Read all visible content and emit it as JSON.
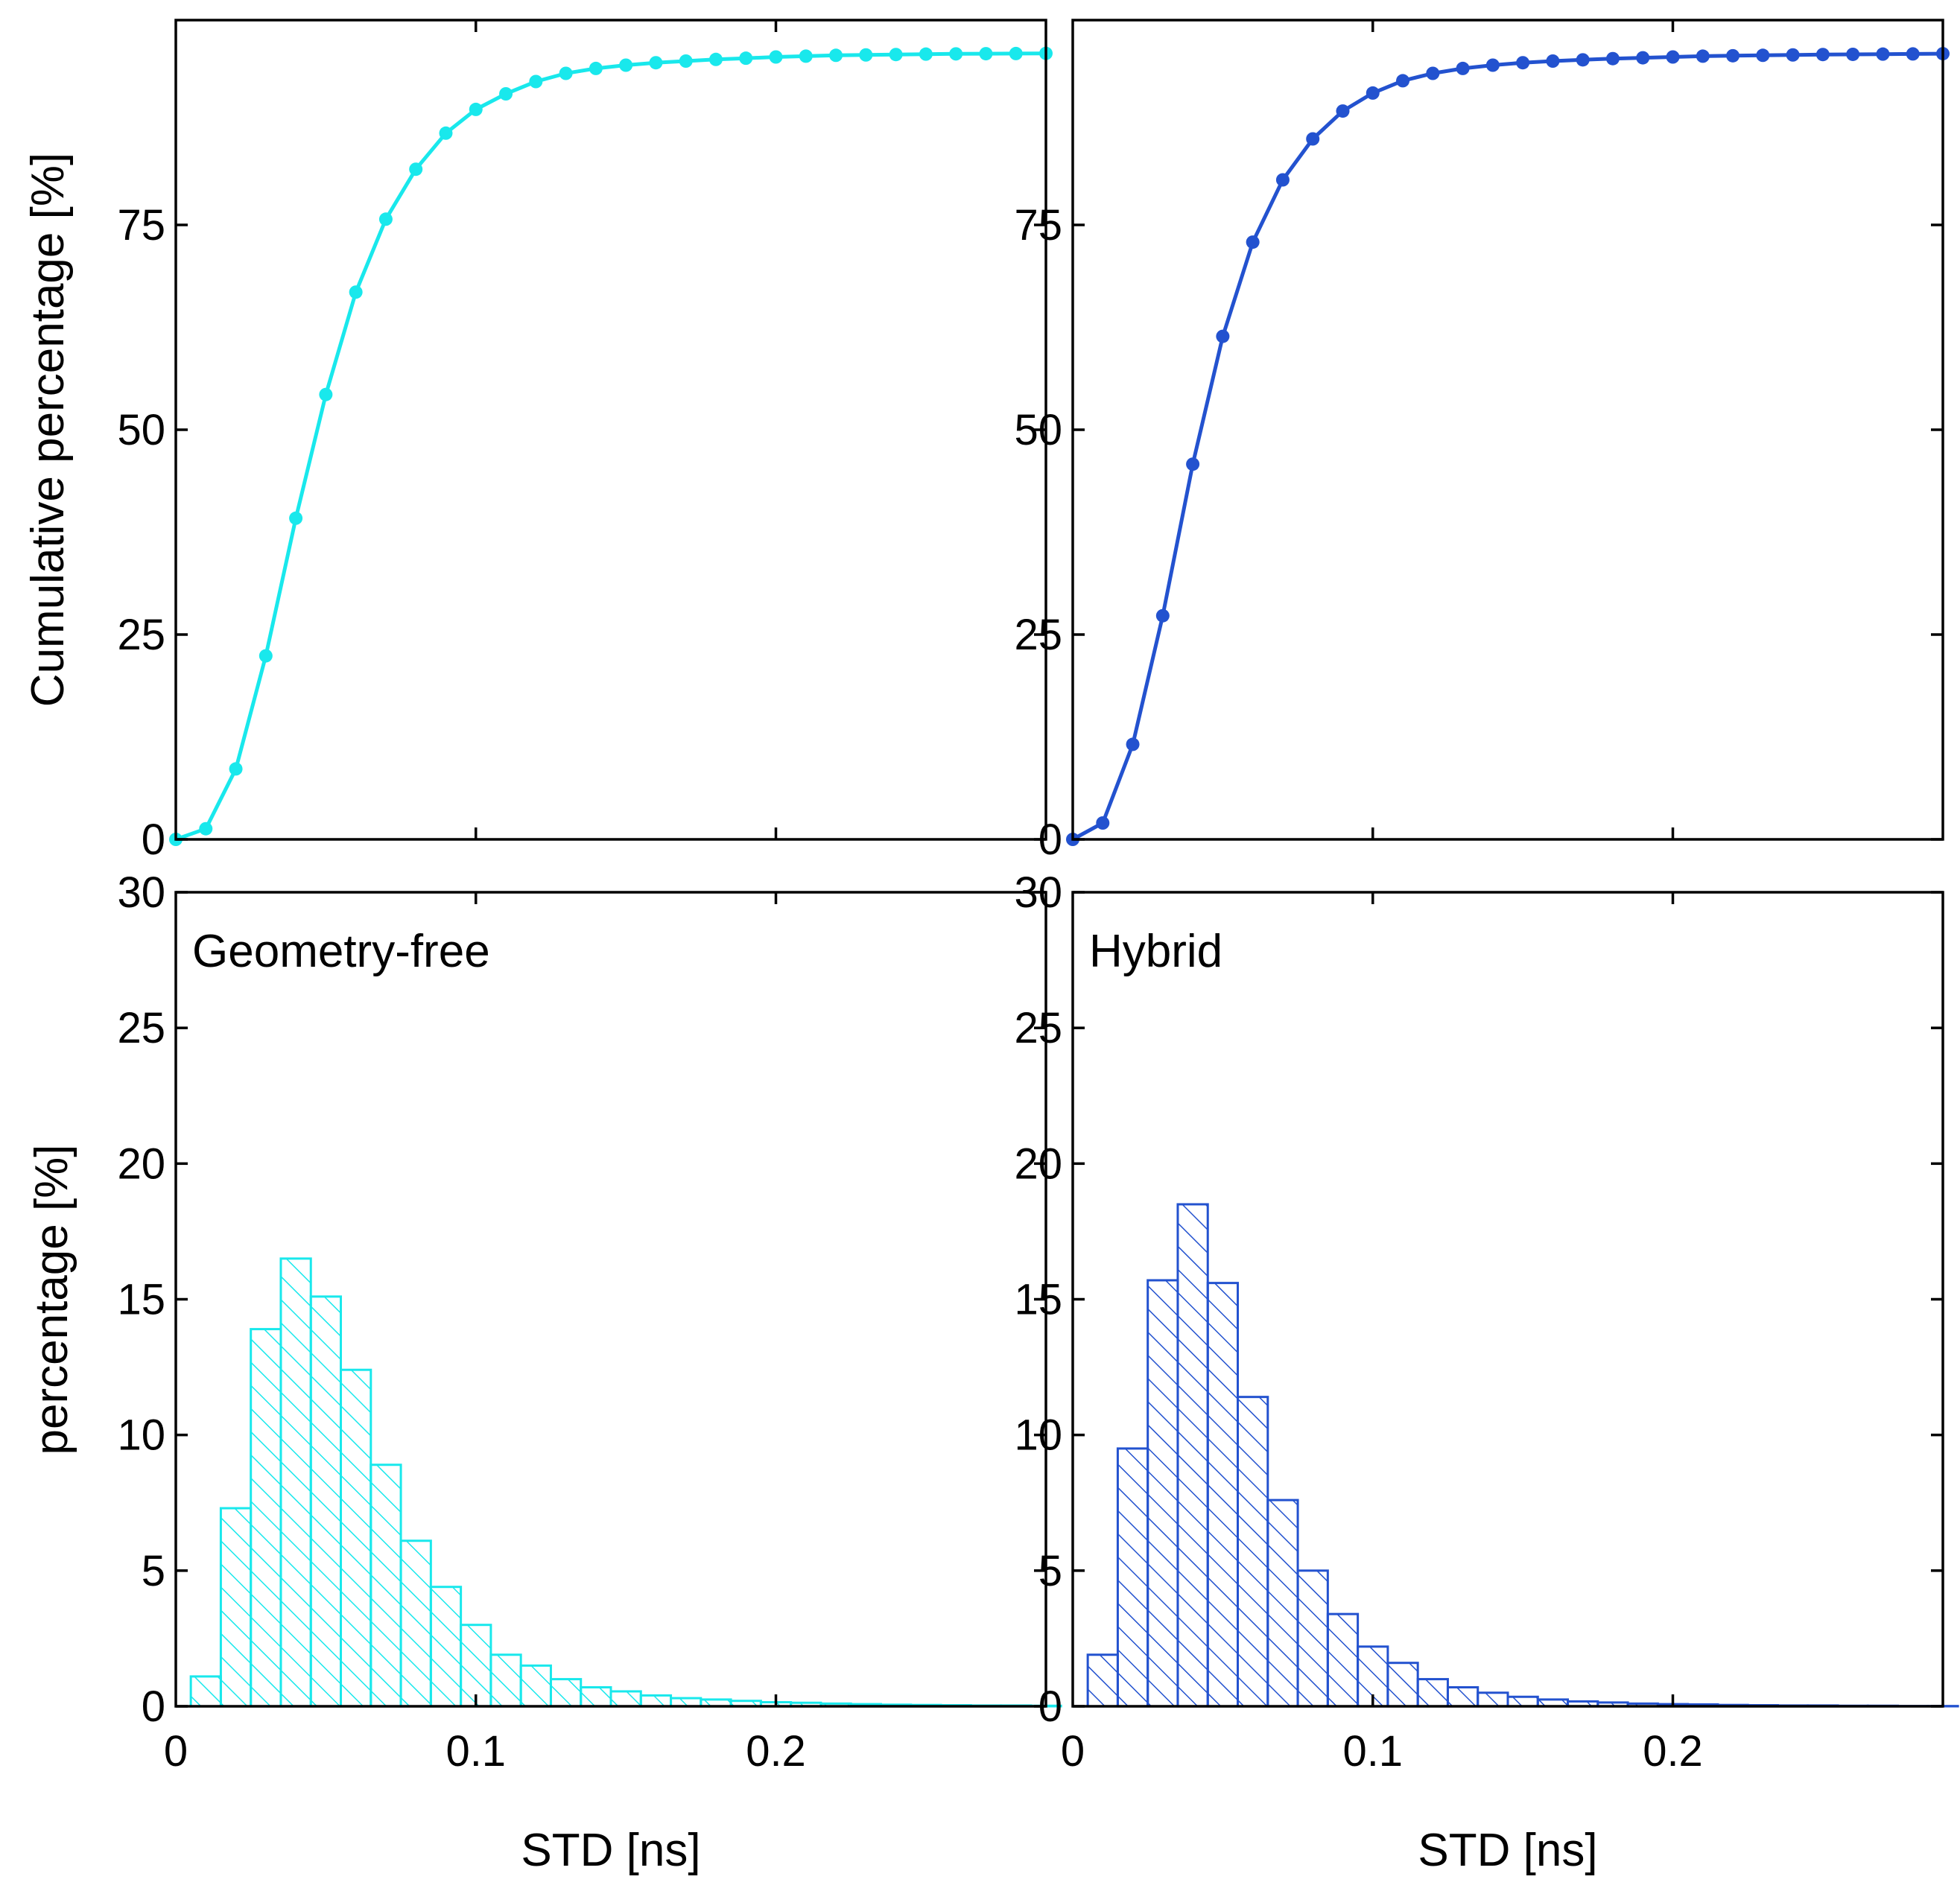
{
  "chart_data": [
    {
      "id": "cdf-geometry-free",
      "type": "line",
      "ylabel": "Cumulative percentage [%]",
      "xlabel": "",
      "ylim": [
        0,
        100
      ],
      "xlim": [
        0,
        0.29
      ],
      "yticks": [
        0,
        25,
        50,
        75
      ],
      "xticks": [
        0.1,
        0.2
      ],
      "color": "#19E8EC",
      "x": [
        0,
        0.01,
        0.02,
        0.03,
        0.04,
        0.05,
        0.06,
        0.07,
        0.08,
        0.09,
        0.1,
        0.11,
        0.12,
        0.13,
        0.14,
        0.15,
        0.16,
        0.17,
        0.18,
        0.19,
        0.2,
        0.21,
        0.22,
        0.23,
        0.24,
        0.25,
        0.26,
        0.27,
        0.28,
        0.29
      ],
      "values": [
        0,
        1.3,
        8.6,
        22.4,
        39.2,
        54.3,
        66.8,
        75.7,
        81.8,
        86.2,
        89.1,
        91.0,
        92.5,
        93.5,
        94.1,
        94.5,
        94.8,
        95.0,
        95.2,
        95.35,
        95.5,
        95.6,
        95.7,
        95.75,
        95.8,
        95.85,
        95.88,
        95.9,
        95.92,
        95.94
      ]
    },
    {
      "id": "cdf-hybrid",
      "type": "line",
      "ylabel": "",
      "xlabel": "",
      "ylim": [
        0,
        100
      ],
      "xlim": [
        0,
        0.29
      ],
      "yticks": [
        0,
        25,
        50,
        75
      ],
      "xticks": [
        0.1,
        0.2
      ],
      "color": "#2352CF",
      "x": [
        0,
        0.01,
        0.02,
        0.03,
        0.04,
        0.05,
        0.06,
        0.07,
        0.08,
        0.09,
        0.1,
        0.11,
        0.12,
        0.13,
        0.14,
        0.15,
        0.16,
        0.17,
        0.18,
        0.19,
        0.2,
        0.21,
        0.22,
        0.23,
        0.24,
        0.25,
        0.26,
        0.27,
        0.28,
        0.29
      ],
      "values": [
        0,
        2.0,
        11.6,
        27.3,
        45.8,
        61.4,
        72.9,
        80.5,
        85.5,
        88.9,
        91.1,
        92.6,
        93.5,
        94.1,
        94.5,
        94.8,
        95.0,
        95.15,
        95.3,
        95.4,
        95.5,
        95.6,
        95.65,
        95.7,
        95.75,
        95.8,
        95.82,
        95.85,
        95.87,
        95.9
      ]
    },
    {
      "id": "hist-geometry-free",
      "type": "bar",
      "label": "Geometry-free",
      "ylabel": "percentage [%]",
      "xlabel": "STD [ns]",
      "ylim": [
        0,
        30
      ],
      "xlim": [
        0,
        0.29
      ],
      "yticks": [
        0,
        5,
        10,
        15,
        20,
        25,
        30
      ],
      "xticks": [
        0,
        0.1,
        0.2
      ],
      "color": "#19E8EC",
      "bin_width": 0.01,
      "bin_starts": [
        0.005,
        0.015,
        0.025,
        0.035,
        0.045,
        0.055,
        0.065,
        0.075,
        0.085,
        0.095,
        0.105,
        0.115,
        0.125,
        0.135,
        0.145,
        0.155,
        0.165,
        0.175,
        0.185,
        0.195,
        0.205,
        0.215,
        0.225,
        0.235,
        0.245,
        0.255,
        0.265,
        0.275,
        0.285
      ],
      "values": [
        1.1,
        7.3,
        13.9,
        16.5,
        15.1,
        12.4,
        8.9,
        6.1,
        4.4,
        3.0,
        1.9,
        1.5,
        1.0,
        0.7,
        0.55,
        0.4,
        0.3,
        0.25,
        0.2,
        0.15,
        0.13,
        0.1,
        0.08,
        0.06,
        0.05,
        0.04,
        0.03,
        0.03,
        0.02
      ]
    },
    {
      "id": "hist-hybrid",
      "type": "bar",
      "label": "Hybrid",
      "ylabel": "",
      "xlabel": "STD [ns]",
      "ylim": [
        0,
        30
      ],
      "xlim": [
        0,
        0.29
      ],
      "yticks": [
        0,
        5,
        10,
        15,
        20,
        25,
        30
      ],
      "xticks": [
        0,
        0.1,
        0.2
      ],
      "color": "#2352CF",
      "bin_width": 0.01,
      "bin_starts": [
        0.005,
        0.015,
        0.025,
        0.035,
        0.045,
        0.055,
        0.065,
        0.075,
        0.085,
        0.095,
        0.105,
        0.115,
        0.125,
        0.135,
        0.145,
        0.155,
        0.165,
        0.175,
        0.185,
        0.195,
        0.205,
        0.215,
        0.225,
        0.235,
        0.245,
        0.255,
        0.265,
        0.275,
        0.285
      ],
      "values": [
        1.9,
        9.5,
        15.7,
        18.5,
        15.6,
        11.4,
        7.6,
        5.0,
        3.4,
        2.2,
        1.6,
        1.0,
        0.7,
        0.5,
        0.35,
        0.25,
        0.18,
        0.14,
        0.1,
        0.08,
        0.07,
        0.05,
        0.04,
        0.03,
        0.03,
        0.02,
        0.02,
        0.01,
        0.01
      ]
    }
  ]
}
